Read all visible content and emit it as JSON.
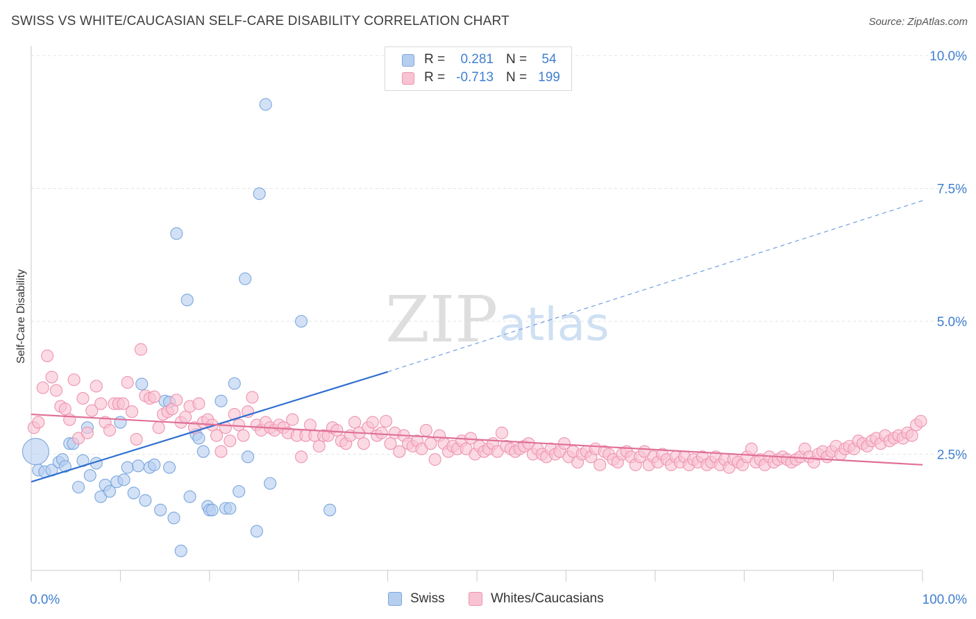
{
  "header": {
    "title": "SWISS VS WHITE/CAUCASIAN SELF-CARE DISABILITY CORRELATION CHART",
    "source": "Source: ZipAtlas.com"
  },
  "watermark": {
    "zip": "ZIP",
    "atlas": "atlas"
  },
  "legend": {
    "rows": [
      {
        "r_label": "R =",
        "r_value": "0.281",
        "n_label": "N =",
        "n_value": "54",
        "color": "#b6cff0"
      },
      {
        "r_label": "R =",
        "r_value": "-0.713",
        "n_label": "N =",
        "n_value": "199",
        "color": "#f8c3d3"
      }
    ]
  },
  "bottom_legend": {
    "swiss": "Swiss",
    "white": "Whites/Caucasians"
  },
  "chart_data": {
    "type": "scatter",
    "title": "SWISS VS WHITE/CAUCASIAN SELF-CARE DISABILITY CORRELATION CHART",
    "ylabel": "Self-Care Disability",
    "xlabel": "",
    "xlim": [
      0,
      100
    ],
    "ylim": [
      0,
      10.5
    ],
    "x_tick_labels": [
      "0.0%",
      "100.0%"
    ],
    "y_ticks": [
      {
        "value": 2.5,
        "label": "2.5%"
      },
      {
        "value": 5.0,
        "label": "5.0%"
      },
      {
        "value": 7.5,
        "label": "7.5%"
      },
      {
        "value": 10.0,
        "label": "10.0%"
      }
    ],
    "grid": true,
    "legend_position": "top-center",
    "series": [
      {
        "name": "Swiss",
        "color": "#7aa6dd",
        "fill": "#b6cff0",
        "trend": {
          "x0": 0,
          "y0": 1.98,
          "x1": 40,
          "y1": 4.05,
          "dash_to_x": 100,
          "dash_to_y": 7.27
        },
        "points": [
          [
            0.5,
            2.55,
            "big"
          ],
          [
            0.8,
            2.2
          ],
          [
            1.5,
            2.17
          ],
          [
            2.3,
            2.2
          ],
          [
            3.1,
            2.35
          ],
          [
            3.5,
            2.4
          ],
          [
            3.8,
            2.27
          ],
          [
            4.3,
            2.7
          ],
          [
            4.7,
            2.7
          ],
          [
            5.3,
            1.88
          ],
          [
            5.8,
            2.38
          ],
          [
            6.3,
            3.0
          ],
          [
            6.6,
            2.1
          ],
          [
            7.3,
            2.33
          ],
          [
            7.8,
            1.7
          ],
          [
            8.3,
            1.92
          ],
          [
            8.8,
            1.8
          ],
          [
            9.6,
            1.98
          ],
          [
            10.0,
            3.1
          ],
          [
            10.4,
            2.02
          ],
          [
            10.8,
            2.25
          ],
          [
            11.5,
            1.77
          ],
          [
            12.0,
            2.28
          ],
          [
            12.4,
            3.82
          ],
          [
            12.8,
            1.63
          ],
          [
            13.3,
            2.25
          ],
          [
            13.8,
            2.3
          ],
          [
            14.5,
            1.45
          ],
          [
            15.0,
            3.5
          ],
          [
            15.5,
            3.48
          ],
          [
            15.5,
            2.25
          ],
          [
            16.0,
            1.3
          ],
          [
            16.3,
            6.65
          ],
          [
            16.8,
            0.68
          ],
          [
            17.5,
            5.4
          ],
          [
            17.8,
            1.7
          ],
          [
            18.5,
            2.87
          ],
          [
            18.8,
            2.8
          ],
          [
            19.3,
            2.55
          ],
          [
            19.8,
            1.52
          ],
          [
            20.0,
            1.45
          ],
          [
            20.3,
            1.45
          ],
          [
            21.3,
            3.5
          ],
          [
            21.8,
            1.48
          ],
          [
            22.3,
            1.48
          ],
          [
            22.8,
            3.83
          ],
          [
            23.3,
            1.8
          ],
          [
            24.0,
            5.8
          ],
          [
            24.3,
            2.45
          ],
          [
            25.3,
            1.05
          ],
          [
            25.6,
            7.4
          ],
          [
            26.3,
            9.08
          ],
          [
            26.8,
            1.95
          ],
          [
            30.3,
            5.0
          ],
          [
            33.5,
            1.45
          ]
        ]
      },
      {
        "name": "Whites/Caucasians",
        "color": "#ee93b0",
        "fill": "#f8c3d3",
        "trend": {
          "x0": 0,
          "y0": 3.25,
          "x1": 100,
          "y1": 2.3
        },
        "points": [
          [
            0.3,
            3.0
          ],
          [
            0.8,
            3.1
          ],
          [
            1.3,
            3.75
          ],
          [
            1.8,
            4.35
          ],
          [
            2.3,
            3.95
          ],
          [
            2.8,
            3.7
          ],
          [
            3.3,
            3.4
          ],
          [
            3.8,
            3.35
          ],
          [
            4.3,
            3.15
          ],
          [
            4.8,
            3.9
          ],
          [
            5.3,
            2.8
          ],
          [
            5.8,
            3.55
          ],
          [
            6.3,
            2.9
          ],
          [
            6.8,
            3.32
          ],
          [
            7.3,
            3.78
          ],
          [
            7.8,
            3.45
          ],
          [
            8.3,
            3.1
          ],
          [
            8.8,
            2.95
          ],
          [
            9.3,
            3.45
          ],
          [
            9.8,
            3.45
          ],
          [
            10.3,
            3.45
          ],
          [
            10.8,
            3.85
          ],
          [
            11.3,
            3.3
          ],
          [
            11.8,
            2.78
          ],
          [
            12.3,
            4.47
          ],
          [
            12.8,
            3.6
          ],
          [
            13.3,
            3.55
          ],
          [
            13.8,
            3.58
          ],
          [
            14.3,
            3.0
          ],
          [
            14.8,
            3.25
          ],
          [
            15.3,
            3.3
          ],
          [
            15.8,
            3.35
          ],
          [
            16.3,
            3.52
          ],
          [
            16.8,
            3.1
          ],
          [
            17.3,
            3.2
          ],
          [
            17.8,
            3.4
          ],
          [
            18.3,
            3.0
          ],
          [
            18.8,
            3.45
          ],
          [
            19.3,
            3.1
          ],
          [
            19.8,
            3.15
          ],
          [
            20.3,
            3.05
          ],
          [
            20.8,
            2.85
          ],
          [
            21.3,
            2.55
          ],
          [
            21.8,
            3.0
          ],
          [
            22.3,
            2.75
          ],
          [
            22.8,
            3.25
          ],
          [
            23.3,
            3.05
          ],
          [
            23.8,
            2.85
          ],
          [
            24.3,
            3.3
          ],
          [
            24.8,
            3.57
          ],
          [
            25.3,
            3.05
          ],
          [
            25.8,
            2.95
          ],
          [
            26.3,
            3.1
          ],
          [
            26.8,
            3.0
          ],
          [
            27.3,
            2.95
          ],
          [
            27.8,
            3.05
          ],
          [
            28.3,
            3.0
          ],
          [
            28.8,
            2.9
          ],
          [
            29.3,
            3.15
          ],
          [
            29.8,
            2.85
          ],
          [
            30.3,
            2.45
          ],
          [
            30.8,
            2.85
          ],
          [
            31.3,
            3.05
          ],
          [
            31.8,
            2.85
          ],
          [
            32.3,
            2.65
          ],
          [
            32.8,
            2.85
          ],
          [
            33.3,
            2.85
          ],
          [
            33.8,
            3.0
          ],
          [
            34.3,
            2.95
          ],
          [
            34.8,
            2.75
          ],
          [
            35.3,
            2.7
          ],
          [
            35.8,
            2.85
          ],
          [
            36.3,
            3.1
          ],
          [
            36.8,
            2.9
          ],
          [
            37.3,
            2.7
          ],
          [
            37.8,
            3.0
          ],
          [
            38.3,
            3.1
          ],
          [
            38.8,
            2.85
          ],
          [
            39.3,
            2.9
          ],
          [
            39.8,
            3.12
          ],
          [
            40.3,
            2.7
          ],
          [
            40.8,
            2.9
          ],
          [
            41.3,
            2.55
          ],
          [
            41.8,
            2.85
          ],
          [
            42.3,
            2.7
          ],
          [
            42.8,
            2.65
          ],
          [
            43.3,
            2.75
          ],
          [
            43.8,
            2.6
          ],
          [
            44.3,
            2.95
          ],
          [
            44.8,
            2.7
          ],
          [
            45.3,
            2.4
          ],
          [
            45.8,
            2.85
          ],
          [
            46.3,
            2.7
          ],
          [
            46.8,
            2.55
          ],
          [
            47.3,
            2.65
          ],
          [
            47.8,
            2.6
          ],
          [
            48.3,
            2.75
          ],
          [
            48.8,
            2.6
          ],
          [
            49.3,
            2.8
          ],
          [
            49.8,
            2.5
          ],
          [
            50.3,
            2.65
          ],
          [
            50.8,
            2.55
          ],
          [
            51.3,
            2.6
          ],
          [
            51.8,
            2.7
          ],
          [
            52.3,
            2.55
          ],
          [
            52.8,
            2.9
          ],
          [
            53.3,
            2.65
          ],
          [
            53.8,
            2.6
          ],
          [
            54.3,
            2.55
          ],
          [
            54.8,
            2.6
          ],
          [
            55.3,
            2.65
          ],
          [
            55.8,
            2.7
          ],
          [
            56.3,
            2.5
          ],
          [
            56.8,
            2.6
          ],
          [
            57.3,
            2.5
          ],
          [
            57.8,
            2.45
          ],
          [
            58.3,
            2.6
          ],
          [
            58.8,
            2.5
          ],
          [
            59.3,
            2.55
          ],
          [
            59.8,
            2.7
          ],
          [
            60.3,
            2.45
          ],
          [
            60.8,
            2.55
          ],
          [
            61.3,
            2.35
          ],
          [
            61.8,
            2.5
          ],
          [
            62.3,
            2.55
          ],
          [
            62.8,
            2.45
          ],
          [
            63.3,
            2.6
          ],
          [
            63.8,
            2.3
          ],
          [
            64.3,
            2.55
          ],
          [
            64.8,
            2.5
          ],
          [
            65.3,
            2.4
          ],
          [
            65.8,
            2.35
          ],
          [
            66.3,
            2.5
          ],
          [
            66.8,
            2.55
          ],
          [
            67.3,
            2.45
          ],
          [
            67.8,
            2.3
          ],
          [
            68.3,
            2.45
          ],
          [
            68.8,
            2.55
          ],
          [
            69.3,
            2.3
          ],
          [
            69.8,
            2.45
          ],
          [
            70.3,
            2.35
          ],
          [
            70.8,
            2.5
          ],
          [
            71.3,
            2.4
          ],
          [
            71.8,
            2.3
          ],
          [
            72.3,
            2.45
          ],
          [
            72.8,
            2.35
          ],
          [
            73.3,
            2.45
          ],
          [
            73.8,
            2.3
          ],
          [
            74.3,
            2.4
          ],
          [
            74.8,
            2.35
          ],
          [
            75.3,
            2.45
          ],
          [
            75.8,
            2.3
          ],
          [
            76.3,
            2.35
          ],
          [
            76.8,
            2.45
          ],
          [
            77.3,
            2.3
          ],
          [
            77.8,
            2.4
          ],
          [
            78.3,
            2.25
          ],
          [
            78.8,
            2.4
          ],
          [
            79.3,
            2.35
          ],
          [
            79.8,
            2.3
          ],
          [
            80.3,
            2.45
          ],
          [
            80.8,
            2.6
          ],
          [
            81.3,
            2.35
          ],
          [
            81.8,
            2.4
          ],
          [
            82.3,
            2.3
          ],
          [
            82.8,
            2.45
          ],
          [
            83.3,
            2.35
          ],
          [
            83.8,
            2.4
          ],
          [
            84.3,
            2.45
          ],
          [
            84.8,
            2.4
          ],
          [
            85.3,
            2.35
          ],
          [
            85.8,
            2.4
          ],
          [
            86.3,
            2.45
          ],
          [
            86.8,
            2.6
          ],
          [
            87.3,
            2.45
          ],
          [
            87.8,
            2.35
          ],
          [
            88.3,
            2.5
          ],
          [
            88.8,
            2.55
          ],
          [
            89.3,
            2.45
          ],
          [
            89.8,
            2.55
          ],
          [
            90.3,
            2.65
          ],
          [
            90.8,
            2.5
          ],
          [
            91.3,
            2.6
          ],
          [
            91.8,
            2.65
          ],
          [
            92.3,
            2.6
          ],
          [
            92.8,
            2.75
          ],
          [
            93.3,
            2.7
          ],
          [
            93.8,
            2.65
          ],
          [
            94.3,
            2.75
          ],
          [
            94.8,
            2.8
          ],
          [
            95.3,
            2.7
          ],
          [
            95.8,
            2.85
          ],
          [
            96.3,
            2.75
          ],
          [
            96.8,
            2.8
          ],
          [
            97.3,
            2.85
          ],
          [
            97.8,
            2.8
          ],
          [
            98.3,
            2.9
          ],
          [
            98.8,
            2.85
          ],
          [
            99.3,
            3.05
          ],
          [
            99.8,
            3.12
          ]
        ]
      }
    ]
  }
}
